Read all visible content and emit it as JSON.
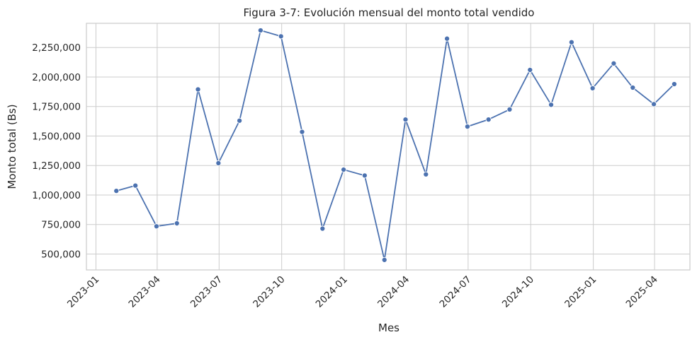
{
  "chart_data": {
    "type": "line",
    "title": "Figura 3-7: Evolución mensual del monto total vendido",
    "xlabel": "Mes",
    "ylabel": "Monto total (Bs)",
    "grid": true,
    "colors": {
      "line": "#4c72b0",
      "grid": "#cccccc",
      "text": "#262626"
    },
    "xlim": [
      "2022-12-18",
      "2025-05-23"
    ],
    "ylim": [
      365000,
      2455000
    ],
    "x_ticks": [
      "2023-01-01",
      "2023-04-01",
      "2023-07-01",
      "2023-10-01",
      "2024-01-01",
      "2024-04-01",
      "2024-07-01",
      "2024-10-01",
      "2025-01-01",
      "2025-04-01"
    ],
    "x_tick_labels": [
      "2023-01",
      "2023-04",
      "2023-07",
      "2023-10",
      "2024-01",
      "2024-04",
      "2024-07",
      "2024-10",
      "2025-01",
      "2025-04"
    ],
    "y_ticks": [
      500000,
      750000,
      1000000,
      1250000,
      1500000,
      1750000,
      2000000,
      2250000
    ],
    "y_tick_labels": [
      "500,000",
      "750,000",
      "1,000,000",
      "1,250,000",
      "1,500,000",
      "1,750,000",
      "2,000,000",
      "2,250,000"
    ],
    "series": [
      {
        "x": [
          "2023-01-31",
          "2023-02-28",
          "2023-03-31",
          "2023-04-30",
          "2023-05-31",
          "2023-06-30",
          "2023-07-31",
          "2023-08-31",
          "2023-09-30",
          "2023-10-31",
          "2023-11-30",
          "2023-12-31",
          "2024-01-31",
          "2024-02-29",
          "2024-03-31",
          "2024-04-30",
          "2024-05-31",
          "2024-06-30",
          "2024-07-31",
          "2024-08-31",
          "2024-09-30",
          "2024-10-31",
          "2024-11-30",
          "2024-12-31",
          "2025-01-31",
          "2025-02-28",
          "2025-03-31",
          "2025-04-30"
        ],
        "y": [
          1035000,
          1080000,
          735000,
          760000,
          1895000,
          1270000,
          1630000,
          2395000,
          2345000,
          1535000,
          715000,
          1215000,
          1165000,
          450000,
          1640000,
          1175000,
          2325000,
          1580000,
          1640000,
          1725000,
          2060000,
          1765000,
          2295000,
          1905000,
          2115000,
          1910000,
          1770000,
          1940000
        ]
      }
    ]
  }
}
